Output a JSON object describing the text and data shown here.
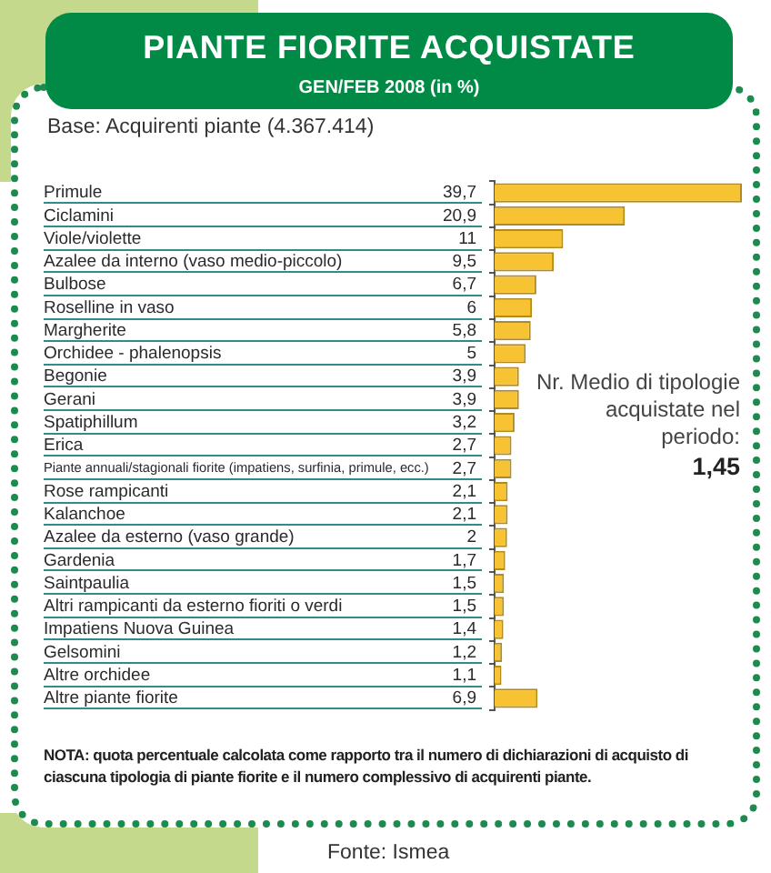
{
  "chart_data": {
    "type": "bar",
    "orientation": "horizontal",
    "title": "PIANTE FIORITE ACQUISTATE",
    "subtitle": "GEN/FEB 2008 (in %)",
    "categories": [
      "Primule",
      "Ciclamini",
      "Viole/violette",
      "Azalee da interno (vaso medio-piccolo)",
      "Bulbose",
      "Roselline in vaso",
      "Margherite",
      "Orchidee - phalenopsis",
      "Begonie",
      "Gerani",
      "Spatiphillum",
      "Erica",
      "Piante annuali/stagionali fiorite (impatiens, surfinia, primule, ecc.)",
      "Rose rampicanti",
      "Kalanchoe",
      "Azalee da esterno (vaso grande)",
      "Gardenia",
      "Saintpaulia",
      "Altri rampicanti da esterno fioriti o verdi",
      "Impatiens Nuova Guinea",
      "Gelsomini",
      "Altre orchidee",
      "Altre piante fiorite"
    ],
    "values": [
      39.7,
      20.9,
      11,
      9.5,
      6.7,
      6,
      5.8,
      5,
      3.9,
      3.9,
      3.2,
      2.7,
      2.7,
      2.1,
      2.1,
      2,
      1.7,
      1.5,
      1.5,
      1.4,
      1.2,
      1.1,
      6.9
    ],
    "value_labels": [
      "39,7",
      "20,9",
      "11",
      "9,5",
      "6,7",
      "6",
      "5,8",
      "5",
      "3,9",
      "3,9",
      "3,2",
      "2,7",
      "2,7",
      "2,1",
      "2,1",
      "2",
      "1,7",
      "1,5",
      "1,5",
      "1,4",
      "1,2",
      "1,1",
      "6,9"
    ],
    "color": "#f7c332",
    "tick_labels": "y",
    "annotations": [
      "Base: Acquirenti piante (4.367.414)",
      "Nr. Medio di tipologie acquistate nel periodo:",
      "1,45",
      "NOTA: quota percentuale calcolata come rapporto tra il numero di dichiarazioni di acquisto di ciascuna tipologia di piante fiorite e il numero complessivo di acquirenti piante.",
      "Fonte: Ismea"
    ]
  }
}
